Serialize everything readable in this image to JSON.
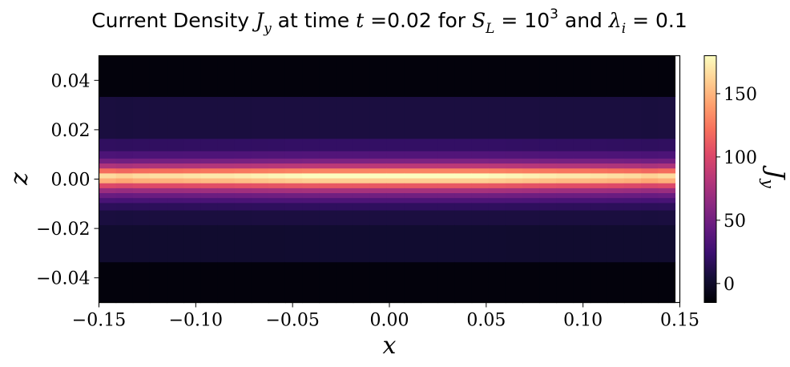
{
  "chart_data": {
    "type": "heatmap",
    "title_parts": {
      "t1": "Current Density ",
      "m1": "J",
      "m1_sub": "y",
      "t2": " at time ",
      "m2": "t",
      "t3": " =0.02 for ",
      "m3": "S",
      "m3_sub": "L",
      "t4": " = 10",
      "t4_sup": "3",
      "t5": " and ",
      "m4": "λ",
      "m4_sub": "i",
      "t6": " = 0.1"
    },
    "xlabel": "x",
    "ylabel": "z",
    "colorbar_label": "J",
    "colorbar_label_sub": "y",
    "xlim": [
      -0.15,
      0.15
    ],
    "ylim": [
      -0.05,
      0.05
    ],
    "colorbar_range": [
      -15,
      180
    ],
    "x_ticks": [
      -0.15,
      -0.1,
      -0.05,
      0.0,
      0.05,
      0.1,
      0.15
    ],
    "x_tick_labels": [
      "−0.15",
      "−0.10",
      "−0.05",
      "0.00",
      "0.05",
      "0.10",
      "0.15"
    ],
    "y_ticks": [
      0.04,
      0.02,
      0.0,
      -0.02,
      -0.04
    ],
    "y_tick_labels": [
      "0.04",
      "0.02",
      "0.00",
      "−0.02",
      "−0.04"
    ],
    "colorbar_ticks": [
      0,
      50,
      100,
      150
    ],
    "colorbar_tick_labels": [
      "0",
      "50",
      "100",
      "150"
    ],
    "colormap": "magma",
    "x_centers": [
      -0.1456,
      -0.1369,
      -0.1281,
      -0.1194,
      -0.1106,
      -0.1019,
      -0.0931,
      -0.0844,
      -0.0756,
      -0.0669,
      -0.0581,
      -0.0494,
      -0.0406,
      -0.0319,
      -0.0231,
      -0.0144,
      -0.0056,
      0.0031,
      0.0119,
      0.0206,
      0.0294,
      0.0381,
      0.0469,
      0.0556,
      0.0644,
      0.0731,
      0.0819,
      0.0906,
      0.0994,
      0.1081,
      0.1169,
      0.1256,
      0.1344,
      0.1431
    ],
    "z_edges": [
      -0.05,
      -0.0335,
      -0.0185,
      -0.0125,
      -0.0095,
      -0.0075,
      -0.0055,
      -0.0035,
      -0.0015,
      0.0005,
      0.0025,
      0.0045,
      0.0065,
      0.0085,
      0.0115,
      0.0165,
      0.0335,
      0.05
    ],
    "z_profile": [
      -12,
      2,
      8,
      18,
      33,
      50,
      75,
      110,
      160,
      180,
      130,
      85,
      55,
      35,
      20,
      8,
      -12
    ],
    "x_profile": [
      0.92,
      0.9,
      0.92,
      0.93,
      0.93,
      0.94,
      0.95,
      0.95,
      0.96,
      0.97,
      0.98,
      0.99,
      1.0,
      1.0,
      1.0,
      1.0,
      1.0,
      1.0,
      1.0,
      1.0,
      1.0,
      1.0,
      1.0,
      0.99,
      0.98,
      0.97,
      0.96,
      0.95,
      0.95,
      0.94,
      0.93,
      0.92,
      0.9,
      0.92
    ]
  }
}
